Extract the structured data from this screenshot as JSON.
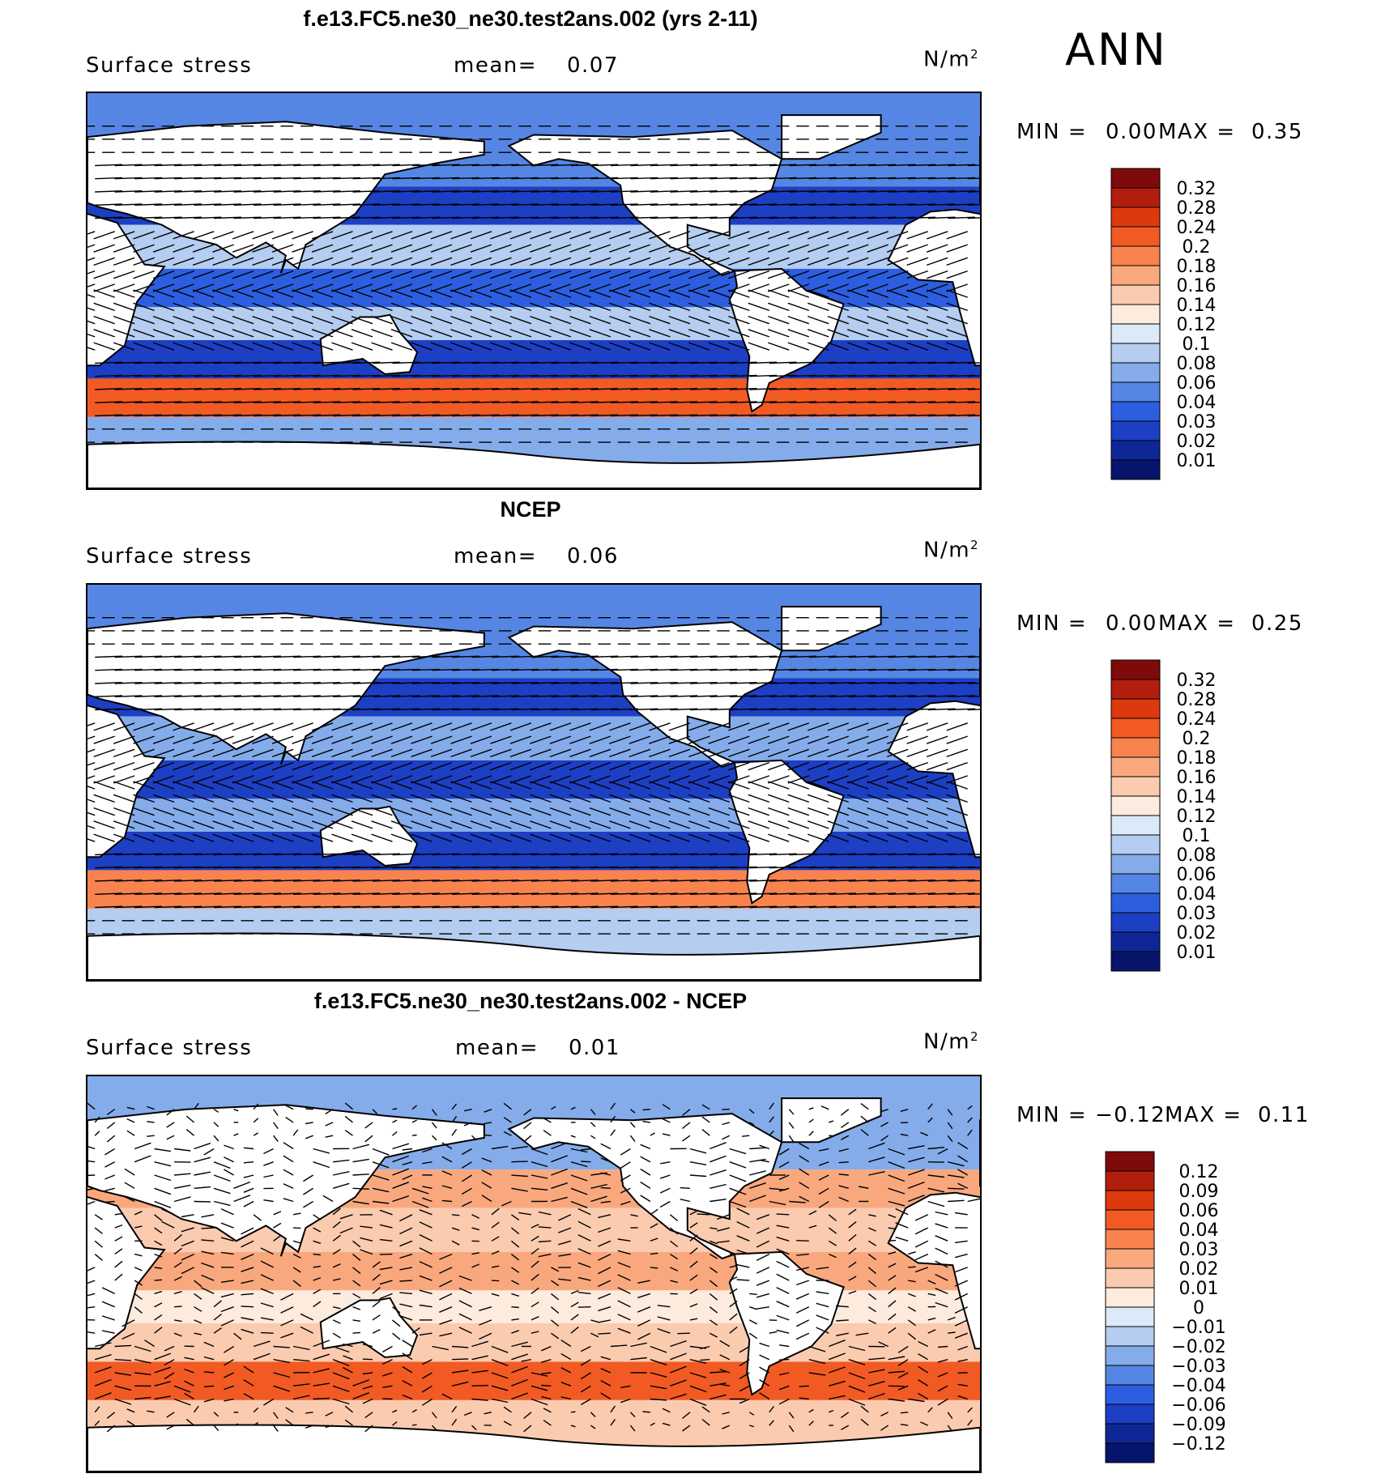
{
  "season": "ANN",
  "panels": [
    {
      "title": "f.e13.FC5.ne30_ne30.test2ans.002 (yrs 2-11)",
      "variable": "Surface stress",
      "mean_label": "mean=",
      "mean_value": "0.07",
      "units": "N/m",
      "units_exp": "2",
      "min_label": "MIN =",
      "min_value": "0.00",
      "max_label": "MAX =",
      "max_value": "0.35"
    },
    {
      "title": "NCEP",
      "variable": "Surface stress",
      "mean_label": "mean=",
      "mean_value": "0.06",
      "units": "N/m",
      "units_exp": "2",
      "min_label": "MIN =",
      "min_value": "0.00",
      "max_label": "MAX =",
      "max_value": "0.25"
    },
    {
      "title": "f.e13.FC5.ne30_ne30.test2ans.002 - NCEP",
      "variable": "Surface stress",
      "mean_label": "mean=",
      "mean_value": "0.01",
      "units": "N/m",
      "units_exp": "2",
      "min_label": "MIN =",
      "min_value": "−0.12",
      "max_label": "MAX =",
      "max_value": "0.11"
    }
  ],
  "chart_data": [
    {
      "type": "heatmap",
      "title": "f.e13.FC5.ne30_ne30.test2ans.002 (yrs 2-11)",
      "subtitle": "Surface stress",
      "units": "N/m²",
      "mean": 0.07,
      "min": 0.0,
      "max": 0.35,
      "colorbar_levels": [
        0.32,
        0.28,
        0.24,
        0.2,
        0.18,
        0.16,
        0.14,
        0.12,
        0.1,
        0.08,
        0.06,
        0.04,
        0.03,
        0.02,
        0.01
      ],
      "colorbar_labels": [
        "0.32",
        "0.28",
        "0.24",
        "0.2",
        "0.18",
        "0.16",
        "0.14",
        "0.12",
        "0.1",
        "0.08",
        "0.06",
        "0.04",
        "0.03",
        "0.02",
        "0.01"
      ],
      "colorbar_colors": [
        "#7f0a0a",
        "#b21e0c",
        "#dc3a0d",
        "#f25a24",
        "#f8834f",
        "#f9a87e",
        "#fbcbb0",
        "#fdebdd",
        "#dce9f8",
        "#b4cdf0",
        "#85acea",
        "#5686e4",
        "#2d5ee0",
        "#1d3fc4",
        "#0f2796",
        "#07146b"
      ],
      "zonal_bands": [
        {
          "lat": 55,
          "value": 0.05
        },
        {
          "lat": 40,
          "value": 0.02
        },
        {
          "lat": 20,
          "value": 0.08
        },
        {
          "lat": 0,
          "value": 0.03
        },
        {
          "lat": -15,
          "value": 0.08
        },
        {
          "lat": -30,
          "value": 0.02
        },
        {
          "lat": -50,
          "value": 0.22
        },
        {
          "lat": -65,
          "value": 0.06
        }
      ]
    },
    {
      "type": "heatmap",
      "title": "NCEP",
      "subtitle": "Surface stress",
      "units": "N/m²",
      "mean": 0.06,
      "min": 0.0,
      "max": 0.25,
      "colorbar_levels": [
        0.32,
        0.28,
        0.24,
        0.2,
        0.18,
        0.16,
        0.14,
        0.12,
        0.1,
        0.08,
        0.06,
        0.04,
        0.03,
        0.02,
        0.01
      ],
      "colorbar_labels": [
        "0.32",
        "0.28",
        "0.24",
        "0.2",
        "0.18",
        "0.16",
        "0.14",
        "0.12",
        "0.1",
        "0.08",
        "0.06",
        "0.04",
        "0.03",
        "0.02",
        "0.01"
      ],
      "colorbar_colors": [
        "#7f0a0a",
        "#b21e0c",
        "#dc3a0d",
        "#f25a24",
        "#f8834f",
        "#f9a87e",
        "#fbcbb0",
        "#fdebdd",
        "#dce9f8",
        "#b4cdf0",
        "#85acea",
        "#5686e4",
        "#2d5ee0",
        "#1d3fc4",
        "#0f2796",
        "#07146b"
      ],
      "zonal_bands": [
        {
          "lat": 55,
          "value": 0.04
        },
        {
          "lat": 40,
          "value": 0.02
        },
        {
          "lat": 20,
          "value": 0.06
        },
        {
          "lat": 0,
          "value": 0.02
        },
        {
          "lat": -15,
          "value": 0.06
        },
        {
          "lat": -30,
          "value": 0.02
        },
        {
          "lat": -50,
          "value": 0.18
        },
        {
          "lat": -65,
          "value": 0.08
        }
      ]
    },
    {
      "type": "heatmap",
      "title": "f.e13.FC5.ne30_ne30.test2ans.002 - NCEP",
      "subtitle": "Surface stress",
      "units": "N/m²",
      "mean": 0.01,
      "min": -0.12,
      "max": 0.11,
      "colorbar_levels": [
        0.12,
        0.09,
        0.06,
        0.04,
        0.03,
        0.02,
        0.01,
        0,
        -0.01,
        -0.02,
        -0.03,
        -0.04,
        -0.06,
        -0.09,
        -0.12
      ],
      "colorbar_labels": [
        "0.12",
        "0.09",
        "0.06",
        "0.04",
        "0.03",
        "0.02",
        "0.01",
        "0",
        "−0.01",
        "−0.02",
        "−0.03",
        "−0.04",
        "−0.06",
        "−0.09",
        "−0.12"
      ],
      "colorbar_colors": [
        "#7f0a0a",
        "#b21e0c",
        "#dc3a0d",
        "#f25a24",
        "#f8834f",
        "#f9a87e",
        "#fbcbb0",
        "#fdebdd",
        "#dce9f8",
        "#b4cdf0",
        "#85acea",
        "#5686e4",
        "#2d5ee0",
        "#1d3fc4",
        "#0f2796",
        "#07146b"
      ],
      "zonal_bands": [
        {
          "lat": 55,
          "value": -0.03
        },
        {
          "lat": 40,
          "value": 0.02
        },
        {
          "lat": 20,
          "value": 0.01
        },
        {
          "lat": 0,
          "value": 0.02
        },
        {
          "lat": -15,
          "value": 0.0
        },
        {
          "lat": -30,
          "value": 0.01
        },
        {
          "lat": -50,
          "value": 0.05
        },
        {
          "lat": -65,
          "value": 0.01
        }
      ]
    }
  ]
}
